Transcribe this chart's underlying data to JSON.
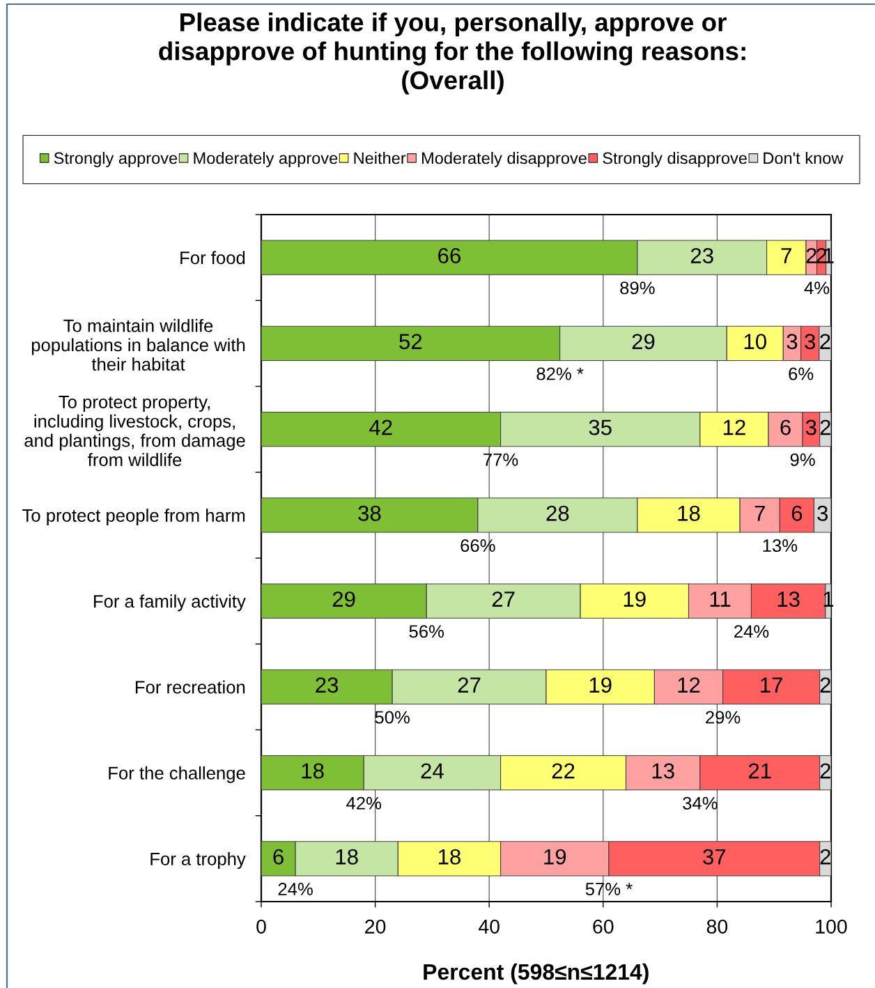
{
  "chart_data": {
    "type": "bar",
    "orientation": "horizontal",
    "stacked": true,
    "title": "Please indicate if you, personally, approve or\ndisapprove of hunting for the following reasons:\n(Overall)",
    "xlabel": "Percent (598≤n≤1214)",
    "categories": [
      "For food",
      "To maintain wildlife\npopulations in balance with\ntheir habitat",
      "To protect property,\nincluding livestock, crops,\nand plantings, from damage\nfrom wildlife",
      "To protect people from harm",
      "For a family activity",
      "For recreation",
      "For the challenge",
      "For a trophy"
    ],
    "series": [
      {
        "name": "Strongly approve",
        "color": "#7fbf35",
        "values": [
          66,
          52.4,
          42,
          38,
          29,
          23,
          18,
          6
        ],
        "value_labels": [
          "66",
          "52",
          "42",
          "38",
          "29",
          "23",
          "18",
          "6"
        ]
      },
      {
        "name": "Moderately approve",
        "color": "#c4e5a3",
        "values": [
          22.7,
          29.3,
          35,
          28,
          27,
          27,
          24,
          18
        ],
        "value_labels": [
          "23",
          "29",
          "35",
          "28",
          "27",
          "27",
          "24",
          "18"
        ]
      },
      {
        "name": "Neither",
        "color": "#ffff73",
        "values": [
          6.9,
          9.9,
          12,
          18,
          19,
          19,
          22,
          18
        ],
        "value_labels": [
          "7",
          "10",
          "12",
          "18",
          "19",
          "19",
          "22",
          "18"
        ]
      },
      {
        "name": "Moderately disapprove",
        "color": "#ffa1a1",
        "values": [
          1.9,
          3.1,
          6,
          7,
          11,
          12,
          13,
          19
        ],
        "value_labels": [
          "2",
          "3",
          "6",
          "7",
          "11",
          "12",
          "13",
          "19"
        ]
      },
      {
        "name": "Strongly disapprove",
        "color": "#ff5f5f",
        "values": [
          1.6,
          3.2,
          3,
          6,
          13,
          17,
          21,
          37
        ],
        "value_labels": [
          "2",
          "3",
          "3",
          "6",
          "13",
          "17",
          "21",
          "37"
        ]
      },
      {
        "name": "Don't know",
        "color": "#d9d9d9",
        "values": [
          0.9,
          2.1,
          2,
          3,
          1,
          2,
          2,
          2
        ],
        "value_labels": [
          "1",
          "2",
          "2",
          "3",
          "1",
          "2",
          "2",
          "2"
        ]
      }
    ],
    "xlim": [
      0,
      100
    ],
    "xticks": [
      0,
      20,
      40,
      60,
      80,
      100
    ],
    "grid": "x",
    "legend": "top",
    "annotations": [
      {
        "text": "89%",
        "x": 66,
        "y": "For food"
      },
      {
        "text": "4%",
        "x": 97.5,
        "y": "For food"
      },
      {
        "text": "82% *",
        "x": 52.4,
        "y": "To maintain wildlife\npopulations in balance with\ntheir habitat"
      },
      {
        "text": "6%",
        "x": 94.7,
        "y": "To maintain wildlife\npopulations in balance with\ntheir habitat"
      },
      {
        "text": "77%",
        "x": 42,
        "y": "To protect property,\nincluding livestock, crops,\nand plantings, from damage\nfrom wildlife"
      },
      {
        "text": "9%",
        "x": 95,
        "y": "To protect property,\nincluding livestock, crops,\nand plantings, from damage\nfrom wildlife"
      },
      {
        "text": "66%",
        "x": 38,
        "y": "To protect people from harm"
      },
      {
        "text": "13%",
        "x": 91,
        "y": "To protect people from harm"
      },
      {
        "text": "56%",
        "x": 29,
        "y": "For a family activity"
      },
      {
        "text": "24%",
        "x": 86,
        "y": "For a family activity"
      },
      {
        "text": "50%",
        "x": 23,
        "y": "For recreation"
      },
      {
        "text": "29%",
        "x": 81,
        "y": "For recreation"
      },
      {
        "text": "42%",
        "x": 18,
        "y": "For the challenge"
      },
      {
        "text": "34%",
        "x": 77,
        "y": "For the challenge"
      },
      {
        "text": "24%",
        "x": 6,
        "y": "For a trophy"
      },
      {
        "text": "57% *",
        "x": 61,
        "y": "For a trophy"
      }
    ]
  }
}
